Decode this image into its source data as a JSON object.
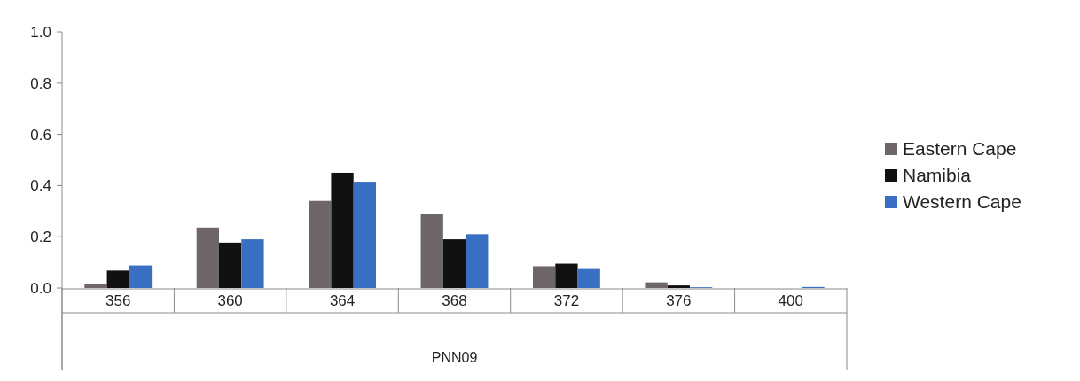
{
  "chart_data": {
    "type": "bar",
    "xlabel": "PNN09",
    "categories": [
      "356",
      "360",
      "364",
      "368",
      "372",
      "376",
      "400"
    ],
    "series": [
      {
        "name": "Eastern Cape",
        "color": "#6f6668",
        "values": [
          0.017,
          0.236,
          0.34,
          0.29,
          0.085,
          0.022,
          0
        ]
      },
      {
        "name": "Namibia",
        "color": "#111111",
        "values": [
          0.068,
          0.177,
          0.45,
          0.19,
          0.095,
          0.01,
          0
        ]
      },
      {
        "name": "Western Cape",
        "color": "#3a6fc4",
        "values": [
          0.088,
          0.19,
          0.415,
          0.21,
          0.074,
          0.003,
          0.004
        ]
      }
    ],
    "ylim": [
      0,
      1
    ],
    "yticks": [
      {
        "value": 0,
        "label": "0.0"
      },
      {
        "value": 0.2,
        "label": "0.2"
      },
      {
        "value": 0.4,
        "label": "0.4"
      },
      {
        "value": 0.6,
        "label": "0.6"
      },
      {
        "value": 0.8,
        "label": "0.8"
      },
      {
        "value": 1,
        "label": "1.0"
      }
    ],
    "grid": false,
    "legend": "right"
  }
}
